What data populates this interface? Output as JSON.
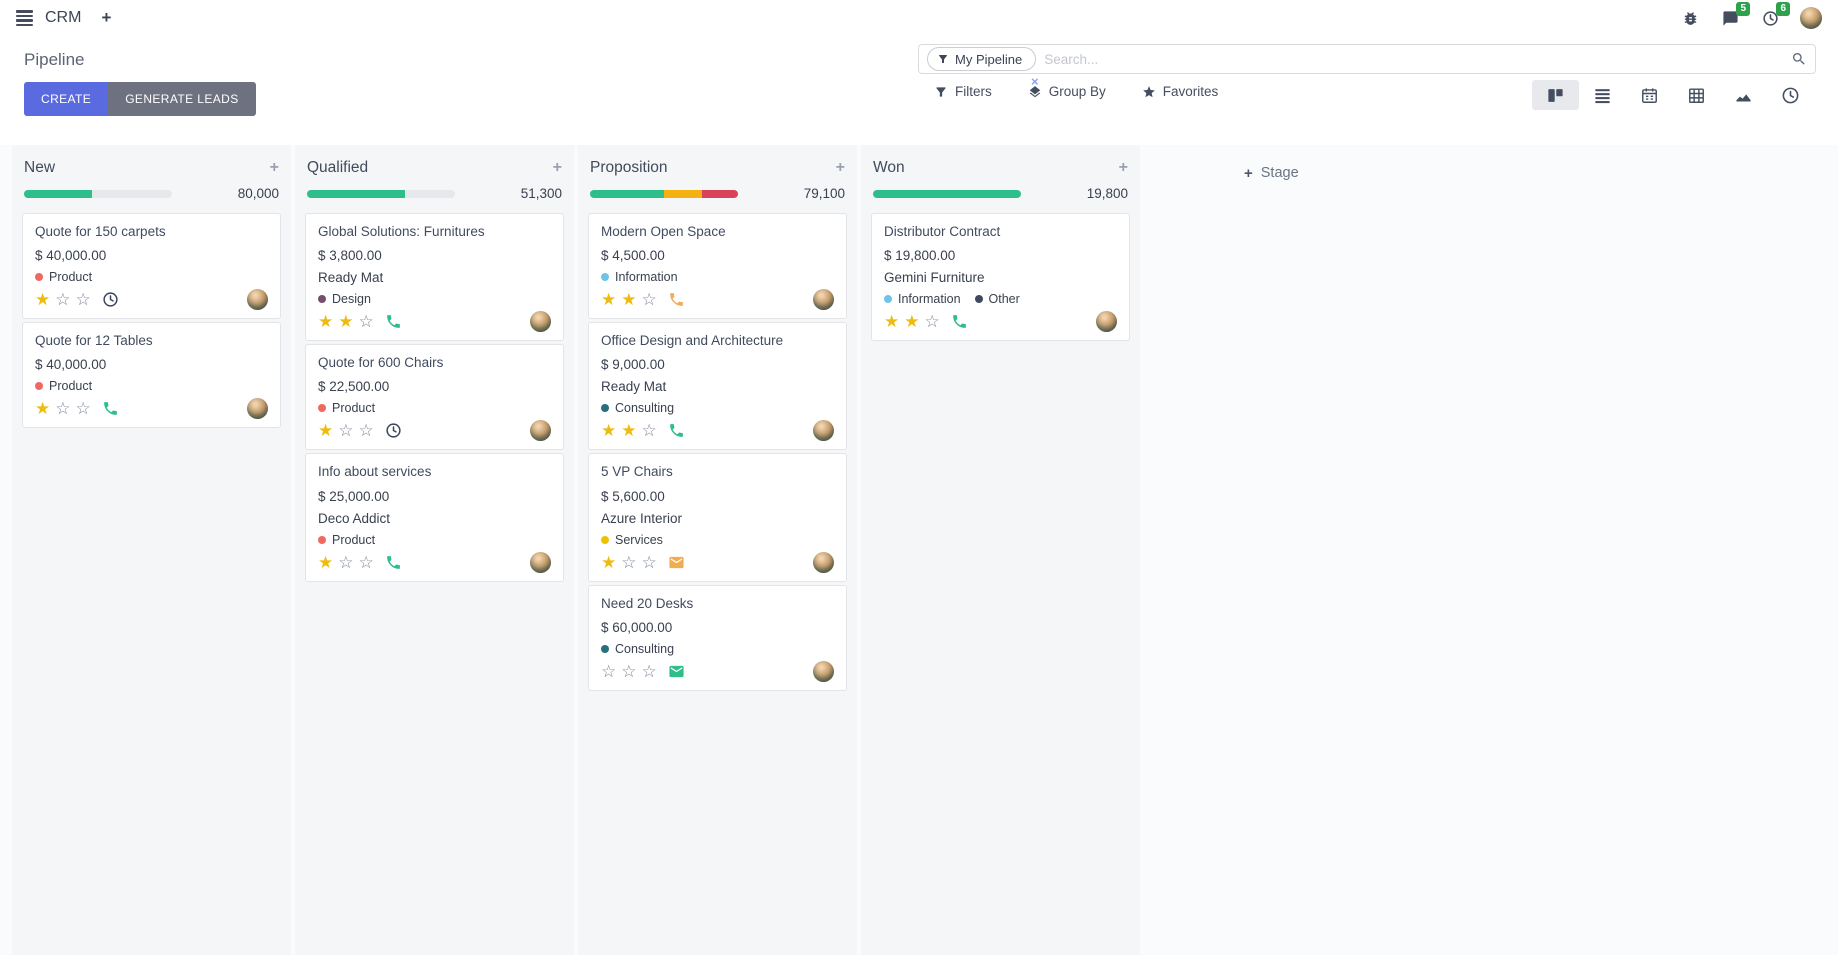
{
  "icons": {
    "plus": "+",
    "close": "×",
    "star_filled": "★",
    "star_empty": "☆"
  },
  "colors": {
    "primary_button": "#5a6be0",
    "secondary_button": "#6e7180",
    "progress_green": "#2ebe8a",
    "progress_orange": "#f5b012",
    "progress_red": "#d8435a",
    "badge_green": "#2fa14d",
    "star_gold": "#eebb11"
  },
  "navbar": {
    "app_name": "CRM",
    "message_badge": "5",
    "activity_badge": "6",
    "icons": [
      "bug-icon",
      "messages-icon",
      "activity-clock-icon",
      "user-avatar"
    ]
  },
  "control_panel": {
    "title": "Pipeline",
    "create_label": "CREATE",
    "generate_leads_label": "GENERATE LEADS",
    "search": {
      "facet": "My Pipeline",
      "placeholder": "Search..."
    },
    "filters_label": "Filters",
    "group_by_label": "Group By",
    "favorites_label": "Favorites",
    "view_switcher": {
      "views": [
        "kanban",
        "list",
        "calendar",
        "pivot",
        "graph",
        "activity"
      ],
      "active": "kanban"
    }
  },
  "kanban": {
    "add_stage_label": "Stage",
    "columns": [
      {
        "name": "New",
        "total": "80,000",
        "progress": [
          {
            "color": "#2ebe8a",
            "pct": 46
          }
        ],
        "cards": [
          {
            "title": "Quote for 150 carpets",
            "amount": "$ 40,000.00",
            "partner": "",
            "tags": [
              {
                "label": "Product",
                "color": "#ee6a5f"
              }
            ],
            "stars": 1,
            "activity": {
              "type": "clock",
              "color": "#39435c"
            }
          },
          {
            "title": "Quote for 12 Tables",
            "amount": "$ 40,000.00",
            "partner": "",
            "tags": [
              {
                "label": "Product",
                "color": "#ee6a5f"
              }
            ],
            "stars": 1,
            "activity": {
              "type": "phone",
              "color": "#2ebe8a"
            }
          }
        ]
      },
      {
        "name": "Qualified",
        "total": "51,300",
        "progress": [
          {
            "color": "#2ebe8a",
            "pct": 66
          }
        ],
        "cards": [
          {
            "title": "Global Solutions: Furnitures",
            "amount": "$ 3,800.00",
            "partner": "Ready Mat",
            "tags": [
              {
                "label": "Design",
                "color": "#744d6f"
              }
            ],
            "stars": 2,
            "activity": {
              "type": "phone",
              "color": "#2ebe8a"
            }
          },
          {
            "title": "Quote for 600 Chairs",
            "amount": "$ 22,500.00",
            "partner": "",
            "tags": [
              {
                "label": "Product",
                "color": "#ee6a5f"
              }
            ],
            "stars": 1,
            "activity": {
              "type": "clock",
              "color": "#39435c"
            }
          },
          {
            "title": "Info about services",
            "amount": "$ 25,000.00",
            "partner": "Deco Addict",
            "tags": [
              {
                "label": "Product",
                "color": "#ee6a5f"
              }
            ],
            "stars": 1,
            "activity": {
              "type": "phone",
              "color": "#2ebe8a"
            }
          }
        ]
      },
      {
        "name": "Proposition",
        "total": "79,100",
        "progress": [
          {
            "color": "#2ebe8a",
            "pct": 50
          },
          {
            "color": "#f5b012",
            "pct": 26
          },
          {
            "color": "#d8435a",
            "pct": 24
          }
        ],
        "cards": [
          {
            "title": "Modern Open Space",
            "amount": "$ 4,500.00",
            "partner": "",
            "tags": [
              {
                "label": "Information",
                "color": "#6fc3e8"
              }
            ],
            "stars": 2,
            "activity": {
              "type": "phone",
              "color": "#f3ab60"
            }
          },
          {
            "title": "Office Design and Architecture",
            "amount": "$ 9,000.00",
            "partner": "Ready Mat",
            "tags": [
              {
                "label": "Consulting",
                "color": "#256f7e"
              }
            ],
            "stars": 2,
            "activity": {
              "type": "phone",
              "color": "#2ebe8a"
            }
          },
          {
            "title": "5 VP Chairs",
            "amount": "$ 5,600.00",
            "partner": "Azure Interior",
            "tags": [
              {
                "label": "Services",
                "color": "#efc102"
              }
            ],
            "stars": 1,
            "activity": {
              "type": "mail",
              "color": "#f0ad4e"
            }
          },
          {
            "title": "Need 20 Desks",
            "amount": "$ 60,000.00",
            "partner": "",
            "tags": [
              {
                "label": "Consulting",
                "color": "#256f7e"
              }
            ],
            "stars": 0,
            "activity": {
              "type": "mail",
              "color": "#2ebe8a"
            }
          }
        ]
      },
      {
        "name": "Won",
        "total": "19,800",
        "progress": [
          {
            "color": "#2ebe8a",
            "pct": 100
          }
        ],
        "cards": [
          {
            "title": "Distributor Contract",
            "amount": "$ 19,800.00",
            "partner": "Gemini Furniture",
            "tags": [
              {
                "label": "Information",
                "color": "#6fc3e8"
              },
              {
                "label": "Other",
                "color": "#3e4a5f"
              }
            ],
            "stars": 2,
            "activity": {
              "type": "phone",
              "color": "#2ebe8a"
            }
          }
        ]
      }
    ]
  }
}
